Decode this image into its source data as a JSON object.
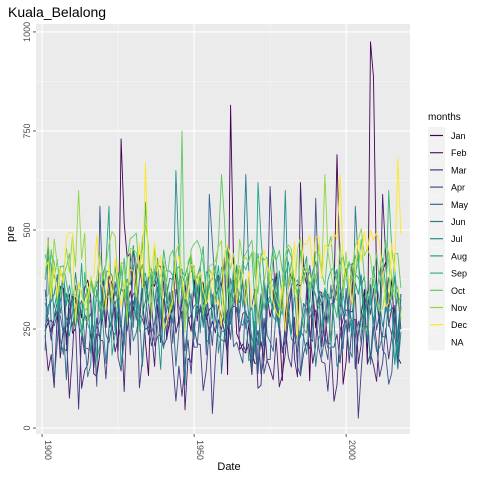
{
  "chart_data": {
    "type": "line",
    "title": "Kuala_Belalong",
    "xlabel": "Date",
    "ylabel": "pre",
    "x_ticks": [
      "1900",
      "1950",
      "2000"
    ],
    "y_ticks": [
      "0",
      "250",
      "500",
      "750",
      "1000"
    ],
    "xlim": [
      1898,
      2021
    ],
    "ylim": [
      -15,
      1020
    ],
    "x_start_year": 1901,
    "x_end_year": 2018,
    "grid": true,
    "legend": {
      "title": "months",
      "placement": "right"
    },
    "series": [
      {
        "name": "Jan",
        "color": "#440154",
        "base": 310,
        "amp": 115,
        "spikes": [
          [
            1926,
            730
          ],
          [
            1962,
            815
          ],
          [
            1997,
            690
          ],
          [
            2008,
            975
          ],
          [
            2009,
            885
          ]
        ]
      },
      {
        "name": "Feb",
        "color": "#481F70",
        "base": 250,
        "amp": 110,
        "spikes": [
          [
            1911,
            330
          ],
          [
            1940,
            420
          ],
          [
            1985,
            620
          ],
          [
            2012,
            590
          ]
        ]
      },
      {
        "name": "Mar",
        "color": "#443983",
        "base": 230,
        "amp": 105,
        "spikes": [
          [
            1930,
            460
          ],
          [
            1975,
            610
          ]
        ]
      },
      {
        "name": "Apr",
        "color": "#3B528B",
        "base": 280,
        "amp": 100,
        "spikes": [
          [
            1919,
            560
          ],
          [
            1990,
            580
          ]
        ]
      },
      {
        "name": "May",
        "color": "#31688E",
        "base": 310,
        "amp": 95,
        "spikes": [
          [
            1902,
            480
          ],
          [
            1955,
            590
          ]
        ]
      },
      {
        "name": "Jun",
        "color": "#287C8E",
        "base": 290,
        "amp": 95,
        "spikes": [
          [
            1967,
            640
          ],
          [
            2003,
            560
          ]
        ]
      },
      {
        "name": "Jul",
        "color": "#21908C",
        "base": 320,
        "amp": 90,
        "spikes": [
          [
            1944,
            650
          ],
          [
            1980,
            600
          ]
        ]
      },
      {
        "name": "Aug",
        "color": "#20A486",
        "base": 340,
        "amp": 90,
        "spikes": [
          [
            1922,
            560
          ],
          [
            1971,
            620
          ]
        ]
      },
      {
        "name": "Sep",
        "color": "#35B779",
        "base": 370,
        "amp": 85,
        "spikes": [
          [
            1934,
            570
          ],
          [
            2014,
            600
          ]
        ]
      },
      {
        "name": "Oct",
        "color": "#5EC962",
        "base": 390,
        "amp": 85,
        "spikes": [
          [
            1946,
            750
          ],
          [
            1959,
            640
          ]
        ]
      },
      {
        "name": "Nov",
        "color": "#90D743",
        "base": 410,
        "amp": 85,
        "spikes": [
          [
            1912,
            600
          ],
          [
            1993,
            640
          ]
        ]
      },
      {
        "name": "Dec",
        "color": "#FDE725",
        "base": 400,
        "amp": 95,
        "spikes": [
          [
            1934,
            670
          ],
          [
            1998,
            640
          ],
          [
            2017,
            680
          ]
        ]
      },
      {
        "name": "NA",
        "color": "#B0B0B0",
        "base": null,
        "amp": 0,
        "spikes": []
      }
    ]
  }
}
